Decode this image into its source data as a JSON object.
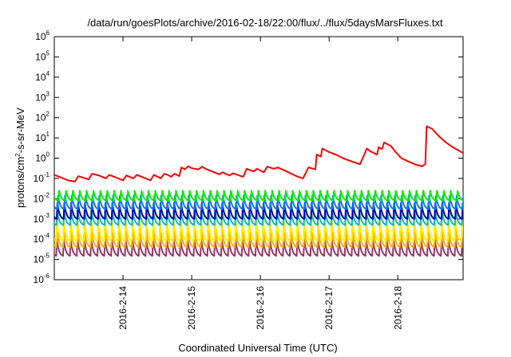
{
  "chart_data": {
    "type": "line",
    "title": "/data/run/goesPlots/archive/2016-02-18/22:00/flux/../flux/5daysMarsFluxes.txt",
    "xlabel": "Coordinated Universal Time (UTC)",
    "ylabel": "protons/cm2-s-sr-MeV",
    "ylabel_parts": {
      "main": "protons/cm",
      "exp": "2",
      "rest": "-s-sr-MeV"
    },
    "yscale": "log",
    "ylim_exp": [
      -6,
      6
    ],
    "y_ticks": [
      {
        "base": "10",
        "exp": "-6",
        "v": -6
      },
      {
        "base": "10",
        "exp": "-5",
        "v": -5
      },
      {
        "base": "10",
        "exp": "-4",
        "v": -4
      },
      {
        "base": "10",
        "exp": "-3",
        "v": -3
      },
      {
        "base": "10",
        "exp": "-2",
        "v": -2
      },
      {
        "base": "10",
        "exp": "-1",
        "v": -1
      },
      {
        "base": "10",
        "exp": "0",
        "v": 0
      },
      {
        "base": "10",
        "exp": "1",
        "v": 1
      },
      {
        "base": "10",
        "exp": "2",
        "v": 2
      },
      {
        "base": "10",
        "exp": "3",
        "v": 3
      },
      {
        "base": "10",
        "exp": "4",
        "v": 4
      },
      {
        "base": "10",
        "exp": "5",
        "v": 5
      },
      {
        "base": "10",
        "exp": "6",
        "v": 6
      }
    ],
    "xlim_day": [
      13.0,
      18.95
    ],
    "x_ticks": [
      {
        "label": "2016-2-14",
        "day": 14
      },
      {
        "label": "2016-2-15",
        "day": 15
      },
      {
        "label": "2016-2-16",
        "day": 16
      },
      {
        "label": "2016-2-17",
        "day": 17
      },
      {
        "label": "2016-2-18",
        "day": 18
      }
    ],
    "grid": false,
    "legend": "none",
    "series": [
      {
        "color": "#ff0000",
        "points": [
          [
            13.0,
            0.15
          ],
          [
            13.1,
            0.11
          ],
          [
            13.2,
            0.08
          ],
          [
            13.3,
            0.07
          ],
          [
            13.35,
            0.13
          ],
          [
            13.5,
            0.09
          ],
          [
            13.55,
            0.17
          ],
          [
            13.65,
            0.14
          ],
          [
            13.75,
            0.1
          ],
          [
            13.8,
            0.15
          ],
          [
            13.9,
            0.11
          ],
          [
            14.0,
            0.08
          ],
          [
            14.05,
            0.14
          ],
          [
            14.15,
            0.1
          ],
          [
            14.2,
            0.15
          ],
          [
            14.3,
            0.11
          ],
          [
            14.4,
            0.08
          ],
          [
            14.45,
            0.15
          ],
          [
            14.55,
            0.1
          ],
          [
            14.6,
            0.17
          ],
          [
            14.65,
            0.15
          ],
          [
            14.7,
            0.12
          ],
          [
            14.75,
            0.17
          ],
          [
            14.82,
            0.13
          ],
          [
            14.85,
            0.35
          ],
          [
            14.9,
            0.28
          ],
          [
            14.95,
            0.4
          ],
          [
            15.0,
            0.32
          ],
          [
            15.1,
            0.28
          ],
          [
            15.15,
            0.38
          ],
          [
            15.2,
            0.3
          ],
          [
            15.3,
            0.22
          ],
          [
            15.4,
            0.16
          ],
          [
            15.45,
            0.2
          ],
          [
            15.55,
            0.14
          ],
          [
            15.6,
            0.18
          ],
          [
            15.75,
            0.12
          ],
          [
            15.8,
            0.3
          ],
          [
            15.9,
            0.22
          ],
          [
            15.95,
            0.3
          ],
          [
            16.05,
            0.2
          ],
          [
            16.1,
            0.38
          ],
          [
            16.2,
            0.3
          ],
          [
            16.25,
            0.35
          ],
          [
            16.35,
            0.25
          ],
          [
            16.45,
            0.17
          ],
          [
            16.55,
            0.12
          ],
          [
            16.62,
            0.1
          ],
          [
            16.7,
            0.35
          ],
          [
            16.8,
            0.28
          ],
          [
            16.82,
            1.5
          ],
          [
            16.88,
            1.2
          ],
          [
            16.9,
            3.0
          ],
          [
            17.0,
            2.0
          ],
          [
            17.1,
            1.5
          ],
          [
            17.2,
            1.0
          ],
          [
            17.3,
            0.75
          ],
          [
            17.45,
            0.5
          ],
          [
            17.55,
            3.0
          ],
          [
            17.6,
            2.2
          ],
          [
            17.7,
            1.5
          ],
          [
            17.72,
            3.5
          ],
          [
            17.77,
            2.8
          ],
          [
            17.8,
            6.0
          ],
          [
            17.9,
            4.0
          ],
          [
            17.97,
            2.0
          ],
          [
            18.05,
            1.0
          ],
          [
            18.15,
            0.7
          ],
          [
            18.25,
            0.5
          ],
          [
            18.35,
            0.4
          ],
          [
            18.4,
            0.5
          ],
          [
            18.42,
            38.0
          ],
          [
            18.5,
            28.0
          ],
          [
            18.6,
            12.0
          ],
          [
            18.7,
            6.0
          ],
          [
            18.8,
            3.5
          ],
          [
            18.95,
            1.8
          ]
        ]
      },
      {
        "color": "#00ee00",
        "base": 0.008,
        "peak": 0.025,
        "period": 0.1,
        "phase": 0.03
      },
      {
        "color": "#0077ff",
        "base": 0.003,
        "peak": 0.014,
        "period": 0.1,
        "phase": 0.045
      },
      {
        "color": "#0000aa",
        "base": 0.001,
        "peak": 0.006,
        "period": 0.1,
        "phase": 0.055
      },
      {
        "color": "#00bbbb",
        "base": 0.0005,
        "peak": 0.0025,
        "period": 0.1,
        "phase": 0.06
      },
      {
        "color": "#ffee00",
        "base": 8e-05,
        "peak": 0.0009,
        "period": 0.1,
        "phase": 0.062
      },
      {
        "color": "#ffaa00",
        "base": 4e-05,
        "peak": 0.00035,
        "period": 0.1,
        "phase": 0.063
      },
      {
        "color": "#993366",
        "base": 1.5e-05,
        "peak": 0.0001,
        "period": 0.1,
        "phase": 0.064
      }
    ]
  }
}
